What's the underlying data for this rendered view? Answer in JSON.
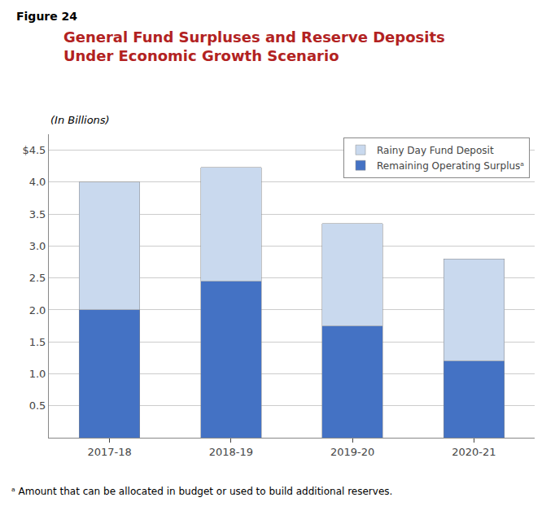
{
  "chart_data": {
    "type": "bar",
    "stacked": true,
    "title": "General Fund Surpluses and Reserve Deposits\nUnder Economic Growth Scenario",
    "subtitle": "(In Billions)",
    "annotations": [
      "Figure 24",
      "ᵃ Amount that can be allocated in budget or used to build additional reserves."
    ],
    "categories": [
      "2017-18",
      "2018-19",
      "2019-20",
      "2020-21"
    ],
    "series": [
      {
        "name": "Remaining Operating Surplusᵃ",
        "color": "#4472C4",
        "values": [
          2.0,
          2.45,
          1.75,
          1.2
        ]
      },
      {
        "name": "Rainy Day Fund Deposit",
        "color": "#C9D9EE",
        "values": [
          2.0,
          1.78,
          1.6,
          1.6
        ]
      }
    ],
    "ylim": [
      0,
      4.75
    ],
    "yticks": [
      0.5,
      {
        "value": 1.0,
        "label": "1.0"
      },
      1.5,
      {
        "value": 2.0,
        "label": "2.0"
      },
      2.5,
      {
        "value": 3.0,
        "label": "3.0"
      },
      3.5,
      {
        "value": 4.0,
        "label": "4.0"
      },
      {
        "value": 4.5,
        "label": "$4.5"
      }
    ],
    "grid": true,
    "legend": "upper right"
  }
}
